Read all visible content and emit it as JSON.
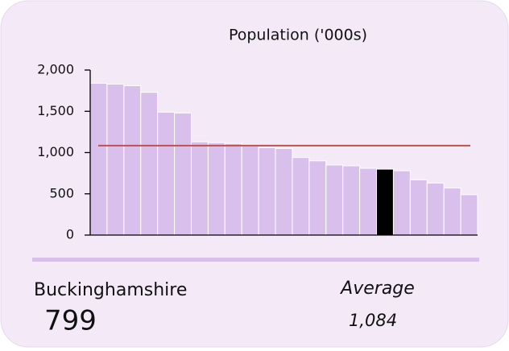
{
  "chart_data": {
    "type": "bar",
    "title": "Population ('000s)",
    "categories": [
      null,
      null,
      null,
      null,
      null,
      null,
      null,
      null,
      null,
      null,
      null,
      null,
      null,
      null,
      null,
      null,
      null,
      "Buckinghamshire",
      null,
      null,
      null,
      null,
      null
    ],
    "values": [
      1840,
      1830,
      1810,
      1730,
      1490,
      1480,
      1130,
      1120,
      1110,
      1080,
      1060,
      1050,
      940,
      900,
      850,
      840,
      810,
      799,
      780,
      670,
      630,
      570,
      490
    ],
    "colors": [
      "#d9c0ec",
      "#d9c0ec",
      "#d9c0ec",
      "#d9c0ec",
      "#d9c0ec",
      "#d9c0ec",
      "#d9c0ec",
      "#d9c0ec",
      "#d9c0ec",
      "#d9c0ec",
      "#d9c0ec",
      "#d9c0ec",
      "#d9c0ec",
      "#d9c0ec",
      "#d9c0ec",
      "#d9c0ec",
      "#d9c0ec",
      "#000000",
      "#d9c0ec",
      "#d9c0ec",
      "#d9c0ec",
      "#d9c0ec",
      "#d9c0ec"
    ],
    "ylim": [
      0,
      2000
    ],
    "yticks": [
      0,
      500,
      {
        "value": 1000,
        "label": "1,000"
      },
      {
        "value": 1500,
        "label": "1,500"
      },
      {
        "value": 2000,
        "label": "2,000"
      }
    ],
    "reference_line": {
      "name": "Average",
      "value": 1084,
      "value_label": "1,084",
      "color": "#c0504d"
    }
  }
}
